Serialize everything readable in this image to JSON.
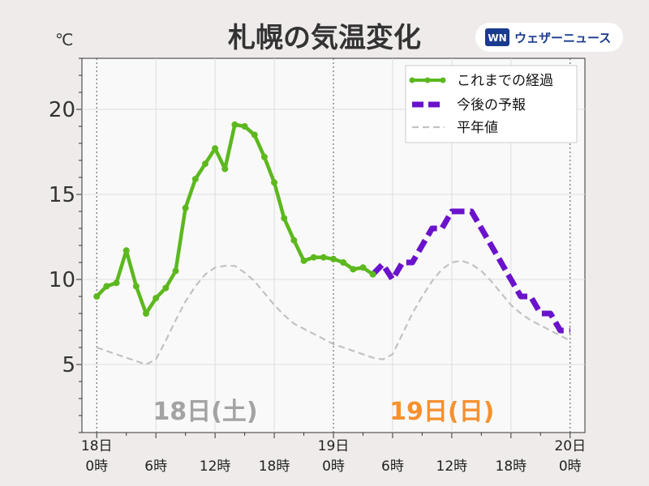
{
  "header": {
    "title": "札幌の気温変化",
    "unit": "℃",
    "brand": "ウェザーニュース"
  },
  "chart_data": {
    "type": "line",
    "title": "札幌の気温変化",
    "ylabel": "℃",
    "ylim": [
      1,
      23
    ],
    "xlim": [
      -1.5,
      49.5
    ],
    "yticks": [
      5,
      10,
      15,
      20
    ],
    "xticks": [
      {
        "x": 0,
        "l1": "18日",
        "l2": "0時"
      },
      {
        "x": 6,
        "l1": "",
        "l2": "6時"
      },
      {
        "x": 12,
        "l1": "",
        "l2": "12時"
      },
      {
        "x": 18,
        "l1": "",
        "l2": "18時"
      },
      {
        "x": 24,
        "l1": "19日",
        "l2": "0時"
      },
      {
        "x": 30,
        "l1": "",
        "l2": "6時"
      },
      {
        "x": 36,
        "l1": "",
        "l2": "12時"
      },
      {
        "x": 42,
        "l1": "",
        "l2": "18時"
      },
      {
        "x": 48,
        "l1": "20日",
        "l2": "0時"
      }
    ],
    "day_labels": [
      {
        "x": 11,
        "text": "18日(土)",
        "color": "#a3a3a3"
      },
      {
        "x": 35,
        "text": "19日(日)",
        "color": "#f5912f"
      }
    ],
    "grid": true,
    "legend_position": "top-right",
    "series": [
      {
        "name": "これまでの経過",
        "color": "#5cb81e",
        "x": [
          0,
          1,
          2,
          3,
          4,
          5,
          6,
          7,
          8,
          9,
          10,
          11,
          12,
          13,
          14,
          15,
          16,
          17,
          18,
          19,
          20,
          21,
          22,
          23,
          24,
          25,
          26,
          27,
          28
        ],
        "values": [
          9.0,
          9.6,
          9.8,
          11.7,
          9.6,
          8.0,
          8.9,
          9.5,
          10.5,
          14.2,
          15.9,
          16.8,
          17.7,
          16.5,
          19.1,
          19.0,
          18.5,
          17.2,
          15.7,
          13.6,
          12.3,
          11.1,
          11.3,
          11.3,
          11.2,
          11.0,
          10.6,
          10.7,
          10.3
        ]
      },
      {
        "name": "今後の予報",
        "color": "#6b12cc",
        "x": [
          28,
          29,
          30,
          31,
          32,
          33,
          34,
          35,
          36,
          37,
          38,
          39,
          40,
          41,
          42,
          43,
          44,
          45,
          46,
          47,
          48
        ],
        "values": [
          10.3,
          10.9,
          10.0,
          11.0,
          11.0,
          12.0,
          13.0,
          13.0,
          14.0,
          14.0,
          14.0,
          13.0,
          12.0,
          11.0,
          10.0,
          9.0,
          9.0,
          8.0,
          8.0,
          7.0,
          7.0
        ]
      },
      {
        "name": "平年値",
        "color": "#c2c2c2",
        "x": [
          0,
          1,
          2,
          3,
          4,
          5,
          6,
          7,
          8,
          9,
          10,
          11,
          12,
          13,
          14,
          15,
          16,
          17,
          18,
          19,
          20,
          21,
          22,
          23,
          24,
          25,
          26,
          27,
          28,
          29,
          30,
          31,
          32,
          33,
          34,
          35,
          36,
          37,
          38,
          39,
          40,
          41,
          42,
          43,
          44,
          45,
          46,
          47,
          48
        ],
        "values": [
          6.0,
          5.8,
          5.6,
          5.4,
          5.2,
          5.0,
          5.3,
          6.4,
          7.6,
          8.7,
          9.6,
          10.3,
          10.7,
          10.8,
          10.8,
          10.4,
          9.9,
          9.2,
          8.5,
          7.9,
          7.4,
          7.1,
          6.8,
          6.5,
          6.2,
          6.0,
          5.8,
          5.6,
          5.4,
          5.3,
          5.6,
          6.8,
          8.0,
          9.0,
          9.9,
          10.6,
          11.0,
          11.1,
          10.9,
          10.5,
          9.9,
          9.2,
          8.5,
          8.0,
          7.6,
          7.3,
          7.0,
          6.7,
          6.4
        ]
      }
    ]
  }
}
